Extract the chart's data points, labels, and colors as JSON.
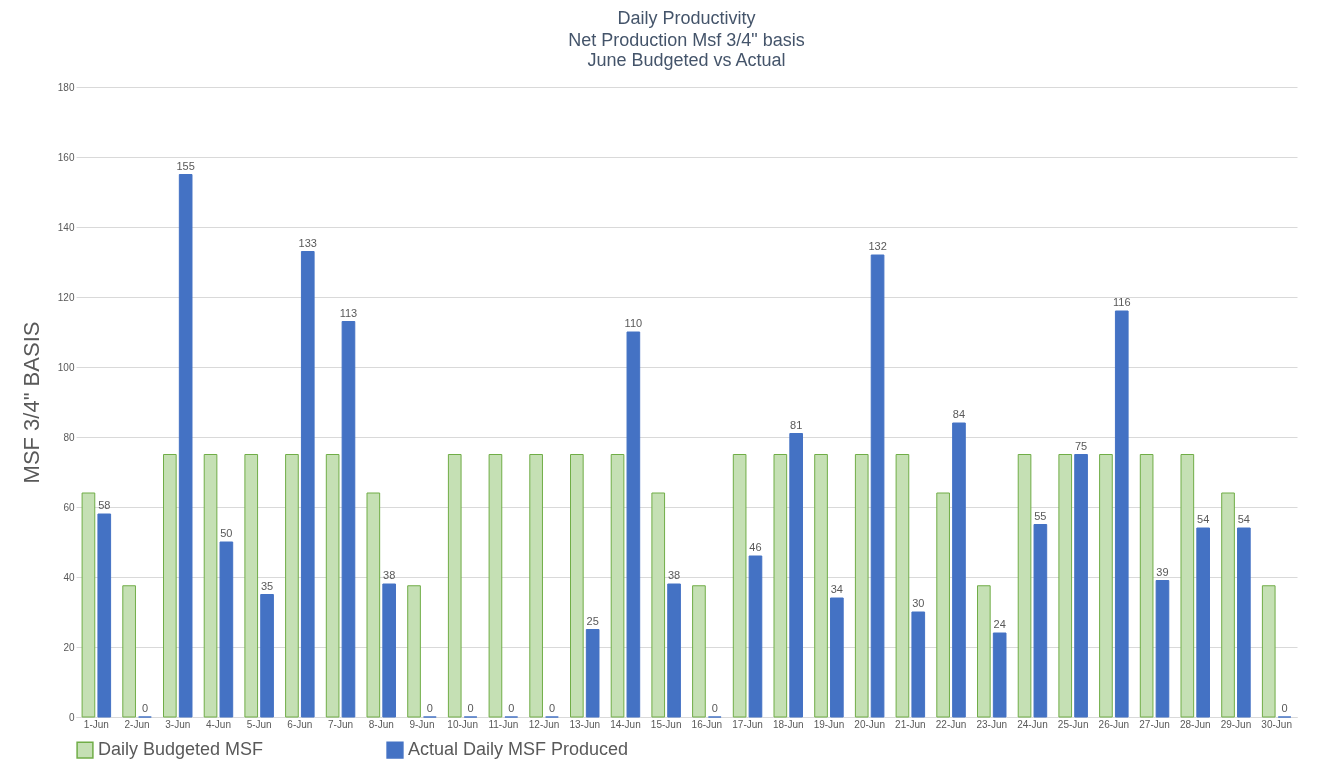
{
  "chart_data": {
    "type": "bar",
    "title": "Daily Productivity",
    "subtitle": "Net Production Msf 3/4\" basis\nJune Budgeted vs Actual",
    "ylabel": "MSF 3/4\" BASIS",
    "categories": [
      "1-Jun",
      "2-Jun",
      "3-Jun",
      "4-Jun",
      "5-Jun",
      "6-Jun",
      "7-Jun",
      "8-Jun",
      "9-Jun",
      "10-Jun",
      "11-Jun",
      "12-Jun",
      "13-Jun",
      "14-Jun",
      "15-Jun",
      "16-Jun",
      "17-Jun",
      "18-Jun",
      "19-Jun",
      "20-Jun",
      "21-Jun",
      "22-Jun",
      "23-Jun",
      "24-Jun",
      "25-Jun",
      "26-Jun",
      "27-Jun",
      "28-Jun",
      "29-Jun",
      "30-Jun"
    ],
    "series": [
      {
        "name": "Daily Budgeted MSF",
        "color": "#c5e0b4",
        "values": [
          64,
          37.5,
          75,
          75,
          75,
          75,
          75,
          64,
          37.5,
          75,
          75,
          75,
          75,
          75,
          64,
          37.5,
          75,
          75,
          75,
          75,
          75,
          64,
          37.5,
          75,
          75,
          75,
          75,
          75,
          64,
          37.5
        ]
      },
      {
        "name": "Actual Daily MSF Produced",
        "color": "#4472c4",
        "values": [
          58,
          0,
          155,
          50,
          35,
          133,
          113,
          38,
          0,
          0,
          0,
          0,
          25,
          110,
          38,
          0,
          46,
          81,
          34,
          132,
          30,
          84,
          24,
          55,
          75,
          116,
          39,
          54,
          54,
          0
        ],
        "value_labels": [
          "58",
          "0",
          "155",
          "50",
          "35",
          "133",
          "113",
          "38",
          "0",
          "0",
          "0",
          "0",
          "25",
          "110",
          "38",
          "0",
          "46",
          "81",
          "34",
          "132",
          "30",
          "84",
          "24",
          "55",
          "75",
          "116",
          "39",
          "54",
          "54",
          "0"
        ]
      }
    ],
    "ylim": [
      0,
      180
    ],
    "yticks": [
      0,
      20,
      40,
      60,
      80,
      100,
      120,
      140,
      160,
      180
    ],
    "grid": "y",
    "legend": "bottom"
  }
}
